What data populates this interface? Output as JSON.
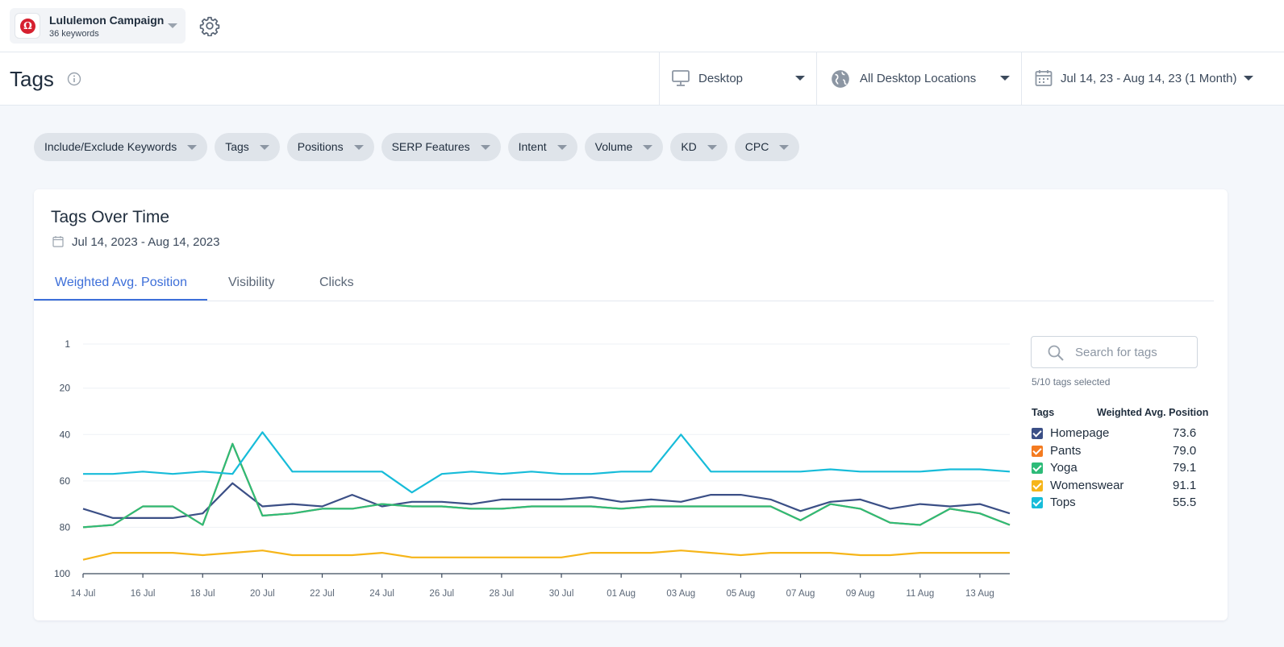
{
  "campaign": {
    "name": "Lululemon Campaign",
    "keywords": "36 keywords",
    "logo_icon": "lululemon-logo-icon",
    "brand_color": "#d6202f"
  },
  "header": {
    "title": "Tags",
    "device": "Desktop",
    "location": "All Desktop Locations",
    "date_range": "Jul 14, 23 - Aug 14, 23 (1 Month)"
  },
  "filters": [
    {
      "label": "Include/Exclude Keywords"
    },
    {
      "label": "Tags"
    },
    {
      "label": "Positions"
    },
    {
      "label": "SERP Features"
    },
    {
      "label": "Intent"
    },
    {
      "label": "Volume"
    },
    {
      "label": "KD"
    },
    {
      "label": "CPC"
    }
  ],
  "card": {
    "title": "Tags Over Time",
    "date": "Jul 14, 2023 - Aug 14, 2023",
    "tabs": [
      {
        "label": "Weighted Avg. Position",
        "active": true
      },
      {
        "label": "Visibility",
        "active": false
      },
      {
        "label": "Clicks",
        "active": false
      }
    ]
  },
  "panel": {
    "search_placeholder": "Search for tags",
    "selected_count": "5/10 tags selected",
    "col_tags": "Tags",
    "col_value": "Weighted Avg. Position",
    "items": [
      {
        "name": "Homepage",
        "value": "73.6",
        "color": "#3b4f86"
      },
      {
        "name": "Pants",
        "value": "79.0",
        "color": "#f47b20"
      },
      {
        "name": "Yoga",
        "value": "79.1",
        "color": "#2dbb78"
      },
      {
        "name": "Womenswear",
        "value": "91.1",
        "color": "#f6b519"
      },
      {
        "name": "Tops",
        "value": "55.5",
        "color": "#17bcd9"
      }
    ]
  },
  "chart_data": {
    "type": "line",
    "y_reversed": true,
    "ylim": [
      100,
      1
    ],
    "y_ticks": [
      1,
      20,
      40,
      60,
      80,
      100
    ],
    "x": [
      "14 Jul",
      "15 Jul",
      "16 Jul",
      "17 Jul",
      "18 Jul",
      "19 Jul",
      "20 Jul",
      "21 Jul",
      "22 Jul",
      "23 Jul",
      "24 Jul",
      "25 Jul",
      "26 Jul",
      "27 Jul",
      "28 Jul",
      "29 Jul",
      "30 Jul",
      "31 Jul",
      "01 Aug",
      "02 Aug",
      "03 Aug",
      "04 Aug",
      "05 Aug",
      "06 Aug",
      "07 Aug",
      "08 Aug",
      "09 Aug",
      "10 Aug",
      "11 Aug",
      "12 Aug",
      "13 Aug",
      "14 Aug"
    ],
    "x_tick_labels": [
      "14 Jul",
      "16 Jul",
      "18 Jul",
      "20 Jul",
      "22 Jul",
      "24 Jul",
      "26 Jul",
      "28 Jul",
      "30 Jul",
      "01 Aug",
      "03 Aug",
      "05 Aug",
      "07 Aug",
      "09 Aug",
      "11 Aug",
      "13 Aug"
    ],
    "grid": true,
    "series": [
      {
        "name": "Homepage",
        "color": "#3b4f86",
        "values": [
          72,
          76,
          76,
          76,
          74,
          61,
          71,
          70,
          71,
          66,
          71,
          69,
          69,
          70,
          68,
          68,
          68,
          67,
          69,
          68,
          69,
          66,
          66,
          68,
          73,
          69,
          68,
          72,
          70,
          71,
          70,
          74
        ]
      },
      {
        "name": "Pants",
        "color": "#f47b20",
        "values": [
          80,
          79,
          71,
          71,
          79,
          44,
          75,
          74,
          72,
          72,
          70,
          71,
          71,
          72,
          72,
          71,
          71,
          71,
          72,
          71,
          71,
          71,
          71,
          71,
          77,
          70,
          72,
          78,
          79,
          72,
          74,
          79
        ]
      },
      {
        "name": "Yoga",
        "color": "#2dbb78",
        "values": [
          80,
          79,
          71,
          71,
          79,
          44,
          75,
          74,
          72,
          72,
          70,
          71,
          71,
          72,
          72,
          71,
          71,
          71,
          72,
          71,
          71,
          71,
          71,
          71,
          77,
          70,
          72,
          78,
          79,
          72,
          74,
          79
        ]
      },
      {
        "name": "Womenswear",
        "color": "#f6b519",
        "values": [
          94,
          91,
          91,
          91,
          92,
          91,
          90,
          92,
          92,
          92,
          91,
          93,
          93,
          93,
          93,
          93,
          93,
          91,
          91,
          91,
          90,
          91,
          92,
          91,
          91,
          91,
          92,
          92,
          91,
          91,
          91,
          91
        ]
      },
      {
        "name": "Tops",
        "color": "#17bcd9",
        "values": [
          57,
          57,
          56,
          57,
          56,
          57,
          39,
          56,
          56,
          56,
          56,
          65,
          57,
          56,
          57,
          56,
          57,
          57,
          56,
          56,
          40,
          56,
          56,
          56,
          56,
          55,
          56,
          56,
          56,
          55,
          55,
          56
        ]
      }
    ]
  }
}
